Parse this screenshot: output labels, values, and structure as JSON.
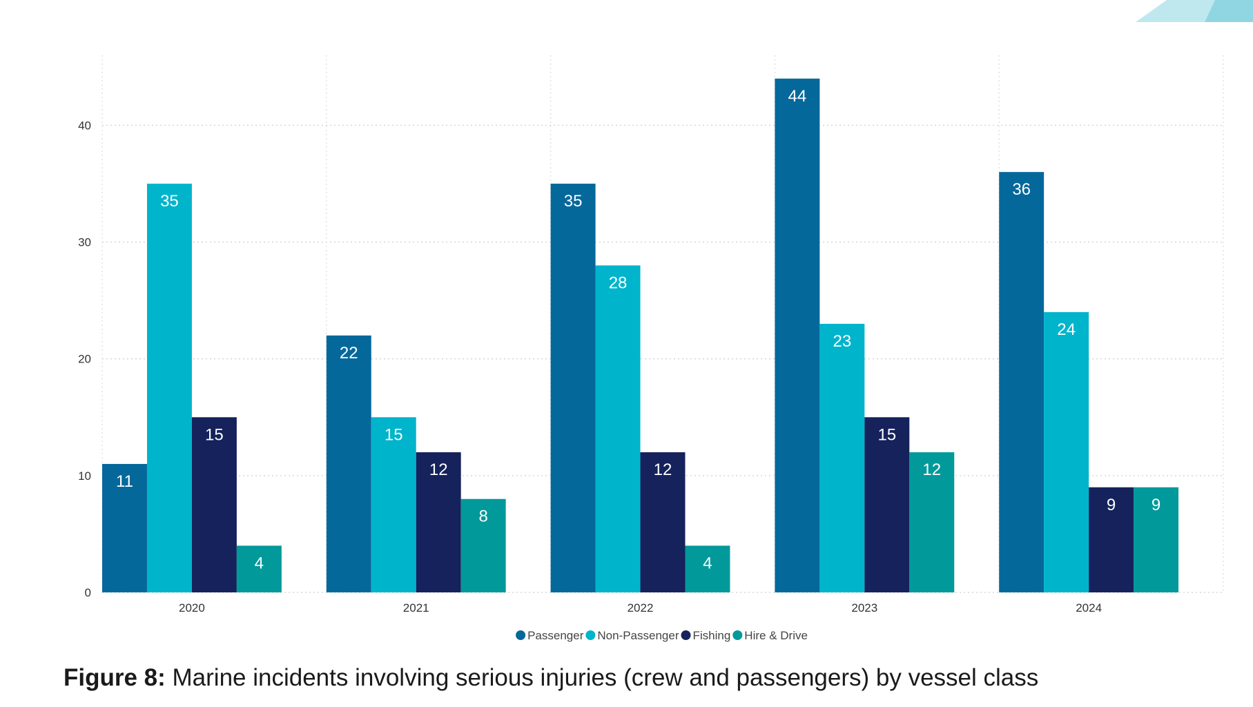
{
  "chart_data": {
    "type": "bar",
    "categories": [
      "2020",
      "2021",
      "2022",
      "2023",
      "2024"
    ],
    "series": [
      {
        "name": "Passenger",
        "values": [
          11,
          22,
          35,
          44,
          36
        ],
        "color": "#05689b"
      },
      {
        "name": "Non-Passenger",
        "values": [
          35,
          15,
          28,
          23,
          24
        ],
        "color": "#00b4cc"
      },
      {
        "name": "Fishing",
        "values": [
          15,
          12,
          12,
          15,
          9
        ],
        "color": "#15225c"
      },
      {
        "name": "Hire & Drive",
        "values": [
          4,
          8,
          4,
          12,
          9
        ],
        "color": "#02999a"
      }
    ],
    "y_ticks": [
      0,
      10,
      20,
      30,
      40
    ],
    "ylim": [
      0,
      46
    ],
    "grid": true,
    "legend_position": "bottom-center",
    "data_labels": true
  },
  "caption": {
    "lead": "Figure 8:",
    "text": " Marine incidents involving serious injuries (crew and passengers) by vessel class"
  },
  "decor": {
    "corner_accent_color": "#9fdde6"
  }
}
